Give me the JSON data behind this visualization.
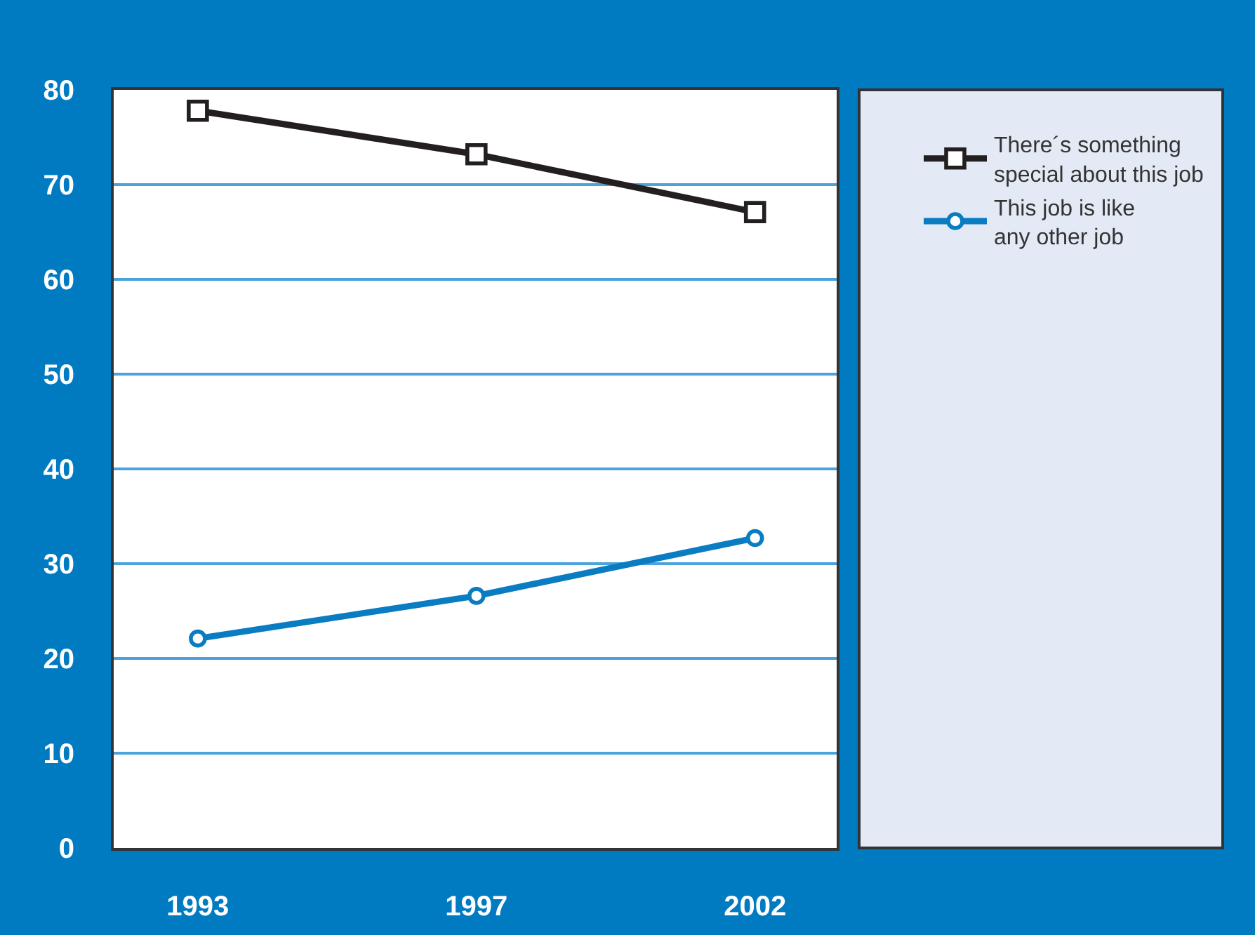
{
  "chart_data": {
    "type": "line",
    "categories": [
      "1993",
      "1997",
      "2002"
    ],
    "series": [
      {
        "name": "There´s something special about this job",
        "color": "#231f20",
        "marker": "square",
        "values": [
          77.8,
          73.2,
          67.1
        ]
      },
      {
        "name": "This job is like any other job",
        "color": "#0a7cc1",
        "marker": "circle",
        "values": [
          22.1,
          26.6,
          32.7
        ]
      }
    ],
    "ylim": [
      0,
      80
    ],
    "yticks": [
      0,
      10,
      20,
      30,
      40,
      50,
      60,
      70,
      80
    ],
    "grid": "y",
    "legend": "right"
  }
}
